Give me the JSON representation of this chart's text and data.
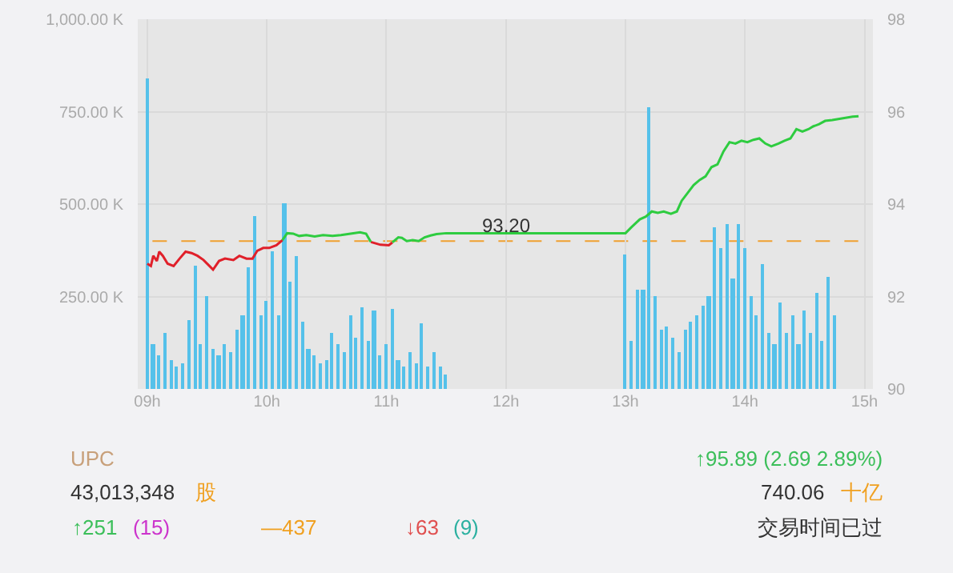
{
  "chart_data": {
    "type": "bar",
    "xlim": [
      8.92,
      15.07
    ],
    "xticks": [
      {
        "value": 9,
        "label": "09h"
      },
      {
        "value": 10,
        "label": "10h"
      },
      {
        "value": 11,
        "label": "11h"
      },
      {
        "value": 12,
        "label": "12h"
      },
      {
        "value": 13,
        "label": "13h"
      },
      {
        "value": 14,
        "label": "14h"
      },
      {
        "value": 15,
        "label": "15h"
      }
    ],
    "ylim": [
      0,
      1000
    ],
    "yticks": [
      {
        "value": 250,
        "label": "250.00 K"
      },
      {
        "value": 500,
        "label": "500.00 K"
      },
      {
        "value": 750,
        "label": "750.00 K"
      },
      {
        "value": 1000,
        "label": "1,000.00 K"
      }
    ],
    "y2lim": [
      90,
      98
    ],
    "y2ticks": [
      90,
      92,
      94,
      96,
      98
    ],
    "grid": true,
    "series": [
      {
        "color": "#55c1ea",
        "x": [
          9.0,
          9.05,
          9.1,
          9.15,
          9.2,
          9.25,
          9.3,
          9.35,
          9.4,
          9.45,
          9.5,
          9.55,
          9.6,
          9.65,
          9.7,
          9.75,
          9.8,
          9.85,
          9.9,
          9.95,
          10.0,
          10.05,
          10.1,
          10.15,
          10.2,
          10.25,
          10.3,
          10.35,
          10.4,
          10.45,
          10.5,
          10.55,
          10.6,
          10.65,
          10.7,
          10.75,
          10.8,
          10.85,
          10.9,
          10.95,
          11.0,
          11.05,
          11.1,
          11.15,
          11.2,
          11.25,
          11.3,
          11.35,
          11.4,
          11.45,
          11.5,
          13.0,
          13.05,
          13.1,
          13.15,
          13.2,
          13.25,
          13.3,
          13.35,
          13.4,
          13.45,
          13.5,
          13.55,
          13.6,
          13.65,
          13.7,
          13.75,
          13.8,
          13.85,
          13.9,
          13.95,
          14.0,
          14.05,
          14.1,
          14.15,
          14.2,
          14.25,
          14.3,
          14.35,
          14.4,
          14.45,
          14.5,
          14.55,
          14.6,
          14.65,
          14.7,
          14.75
        ],
        "values": [
          840,
          120,
          90,
          150,
          80,
          60,
          70,
          185,
          335,
          120,
          250,
          110,
          90,
          120,
          100,
          160,
          200,
          330,
          466,
          200,
          240,
          374,
          200,
          504,
          290,
          360,
          180,
          110,
          90,
          70,
          80,
          150,
          120,
          100,
          200,
          140,
          220,
          130,
          210,
          90,
          120,
          216,
          80,
          60,
          100,
          70,
          176,
          60,
          100,
          60,
          40,
          363,
          130,
          268,
          270,
          762,
          250,
          160,
          170,
          140,
          100,
          160,
          180,
          200,
          226,
          250,
          437,
          380,
          445,
          300,
          445,
          380,
          250,
          200,
          339,
          150,
          120,
          233,
          150,
          200,
          120,
          210,
          150,
          261,
          130,
          304,
          200
        ]
      },
      {
        "type": "line",
        "axis": "y2",
        "color": "#e0202a",
        "x": [
          9.0,
          9.03,
          9.05,
          9.08,
          9.1,
          9.13,
          9.17,
          9.22,
          9.27,
          9.32,
          9.37,
          9.42,
          9.47,
          9.52,
          9.55,
          9.6,
          9.65,
          9.72,
          9.77,
          9.83,
          9.88,
          9.92,
          9.97,
          10.02,
          10.08,
          10.13
        ],
        "values": [
          92.71,
          92.66,
          92.88,
          92.77,
          92.97,
          92.88,
          92.71,
          92.66,
          92.82,
          92.97,
          92.94,
          92.88,
          92.79,
          92.66,
          92.58,
          92.77,
          92.82,
          92.79,
          92.88,
          92.82,
          92.82,
          92.99,
          93.05,
          93.05,
          93.11,
          93.22
        ]
      },
      {
        "type": "line",
        "axis": "y2",
        "color": "#e0202a",
        "x": [
          10.87,
          10.95,
          11.02,
          11.05
        ],
        "values": [
          93.18,
          93.12,
          93.11,
          93.17
        ]
      },
      {
        "type": "line",
        "axis": "y2",
        "color": "#2ecc40",
        "x": [
          10.13,
          10.17,
          10.22,
          10.27,
          10.33,
          10.4,
          10.47,
          10.55,
          10.62,
          10.7,
          10.78,
          10.83,
          10.87,
          10.95,
          11.05,
          11.1,
          11.13,
          11.17,
          11.22,
          11.27,
          11.32,
          11.37,
          11.42,
          11.5,
          13.0,
          13.05,
          13.12,
          13.17,
          13.22,
          13.27,
          13.32,
          13.38,
          13.43,
          13.47,
          13.52,
          13.57,
          13.62,
          13.67,
          13.72,
          13.77,
          13.82,
          13.87,
          13.92,
          13.97,
          14.02,
          14.07,
          14.12,
          14.17,
          14.22,
          14.28,
          14.33,
          14.38,
          14.43,
          14.48,
          14.53,
          14.57,
          14.62,
          14.67,
          14.73,
          14.8,
          14.9,
          14.95
        ],
        "values": [
          93.22,
          93.37,
          93.36,
          93.31,
          93.33,
          93.3,
          93.33,
          93.31,
          93.33,
          93.36,
          93.39,
          93.36,
          93.18,
          null,
          93.17,
          93.28,
          93.27,
          93.2,
          93.22,
          93.2,
          93.28,
          93.32,
          93.35,
          93.37,
          93.37,
          93.5,
          93.67,
          93.73,
          93.84,
          93.81,
          93.84,
          93.79,
          93.84,
          94.07,
          94.24,
          94.41,
          94.52,
          94.6,
          94.8,
          94.86,
          95.14,
          95.34,
          95.31,
          95.37,
          95.34,
          95.39,
          95.42,
          95.31,
          95.25,
          95.31,
          95.37,
          95.42,
          95.62,
          95.57,
          95.62,
          95.68,
          95.73,
          95.8,
          95.82,
          95.85,
          95.89,
          95.9
        ]
      }
    ],
    "ref_lines": [
      {
        "axis": "y2",
        "value": 93.2,
        "label": "93.20",
        "color": "#f0a030",
        "line_style": "dashed"
      }
    ],
    "annotations": [
      "UPC",
      "↑95.89 (2.69 2.89%)",
      "43,013,348",
      "股",
      "740.06",
      "十亿",
      "↑251",
      "(15)",
      "—437",
      "↓63",
      "(9)",
      "交易时间已过"
    ]
  }
}
